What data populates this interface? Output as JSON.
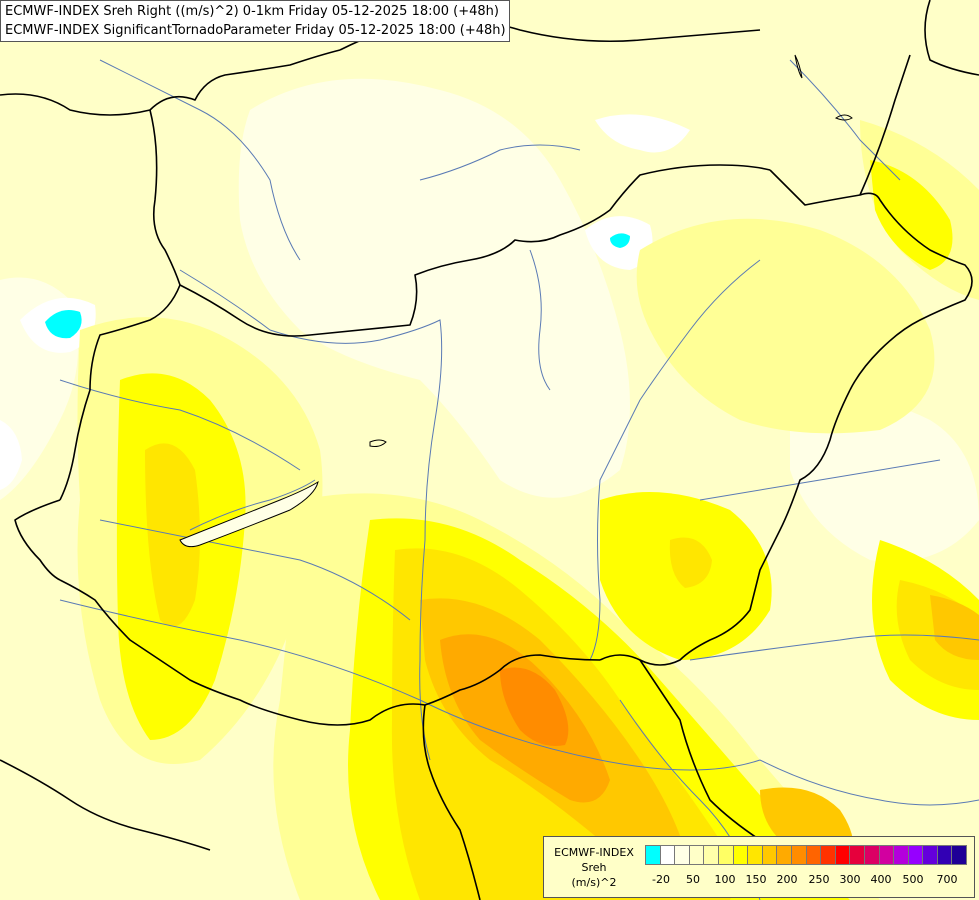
{
  "header": {
    "line1": "ECMWF-INDEX Sreh Right ((m/s)^2) 0-1km Friday 05-12-2025 18:00 (+48h)",
    "line2": "ECMWF-INDEX SignificantTornadoParameter Friday 05-12-2025 18:00 (+48h)"
  },
  "legend": {
    "title1": "ECMWF-INDEX",
    "title2": "Sreh",
    "title3": "(m/s)^2",
    "colors": [
      "#00ffff",
      "#ffffff",
      "#ffffe6",
      "#ffffc8",
      "#ffffaa",
      "#ffff64",
      "#ffff00",
      "#ffe600",
      "#ffc800",
      "#ffaa00",
      "#ff8c00",
      "#ff6400",
      "#ff3200",
      "#ff0000",
      "#e6003c",
      "#dc0064",
      "#d200a0",
      "#b400dc",
      "#9600ff",
      "#6400dc",
      "#3200b4",
      "#1e0096"
    ],
    "tick_labels": [
      "-20",
      "50",
      "100",
      "150",
      "200",
      "250",
      "300",
      "400",
      "500",
      "700"
    ]
  },
  "colors": {
    "background": "#ffffc8",
    "pale": "#ffffe6",
    "light_yellow": "#ffff96",
    "yellow": "#ffff00",
    "gold": "#ffe600",
    "amber": "#ffc800",
    "orange": "#ffaa00",
    "dark_orange": "#ff8c00",
    "cyan": "#00ffff",
    "border": "#000000",
    "river": "#5a7ab4"
  }
}
